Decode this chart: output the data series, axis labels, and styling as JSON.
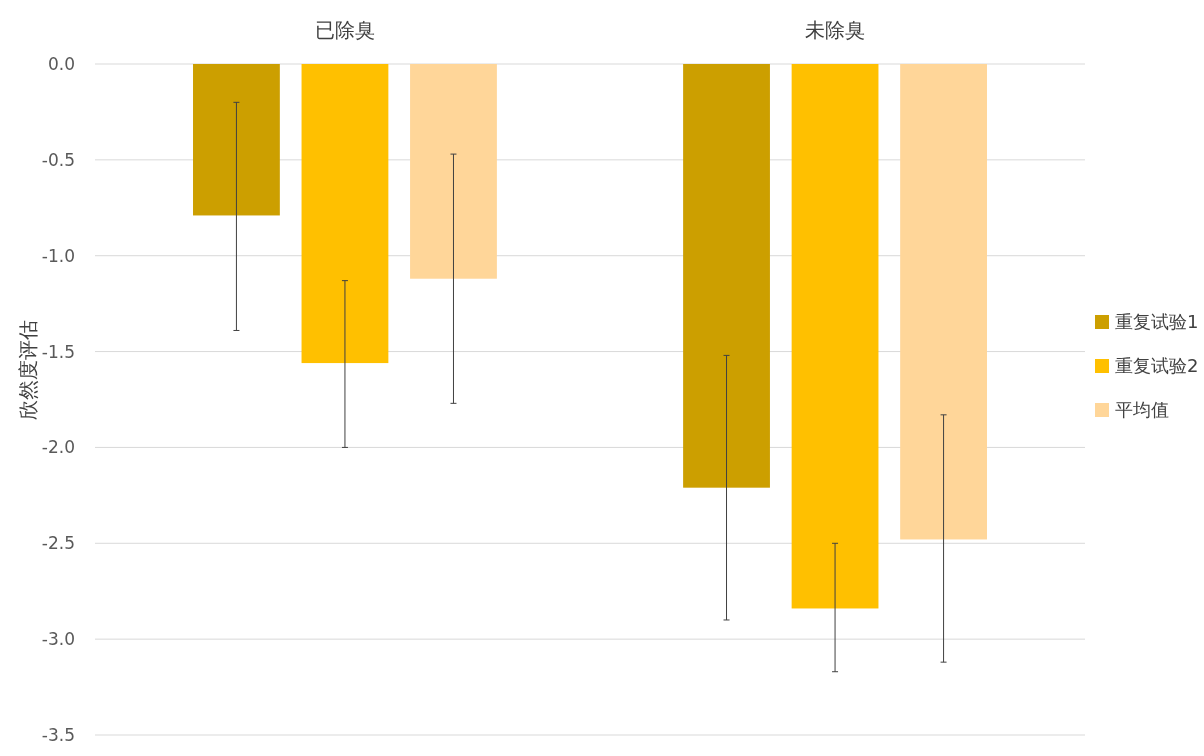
{
  "chart_data": {
    "type": "bar",
    "ylabel": "欣然度评估",
    "categories": [
      "已除臭",
      "未除臭"
    ],
    "series": [
      {
        "name": "重复试验1",
        "color": "#cc9f00",
        "values": [
          -0.79,
          -2.21
        ],
        "errors": [
          [
            -1.39,
            -0.2
          ],
          [
            -2.9,
            -1.52
          ]
        ]
      },
      {
        "name": "重复试验2",
        "color": "#ffc000",
        "values": [
          -1.56,
          -2.84
        ],
        "errors": [
          [
            -2.0,
            -1.13
          ],
          [
            -3.17,
            -2.5
          ]
        ]
      },
      {
        "name": "平均值",
        "color": "#ffd699",
        "values": [
          -1.12,
          -2.48
        ],
        "errors": [
          [
            -1.77,
            -0.47
          ],
          [
            -3.12,
            -1.83
          ]
        ]
      }
    ],
    "ylim": [
      -3.5,
      0
    ],
    "yticks": [
      {
        "value": 0,
        "label": "0.0"
      },
      {
        "value": -0.5,
        "label": "-0.5"
      },
      {
        "value": -1,
        "label": "-1.0"
      },
      {
        "value": -1.5,
        "label": "-1.5"
      },
      {
        "value": -2,
        "label": "-2.0"
      },
      {
        "value": -2.5,
        "label": "-2.5"
      },
      {
        "value": -3,
        "label": "-3.0"
      },
      {
        "value": -3.5,
        "label": "-3.5"
      }
    ],
    "grid": "y",
    "legend": "right"
  }
}
